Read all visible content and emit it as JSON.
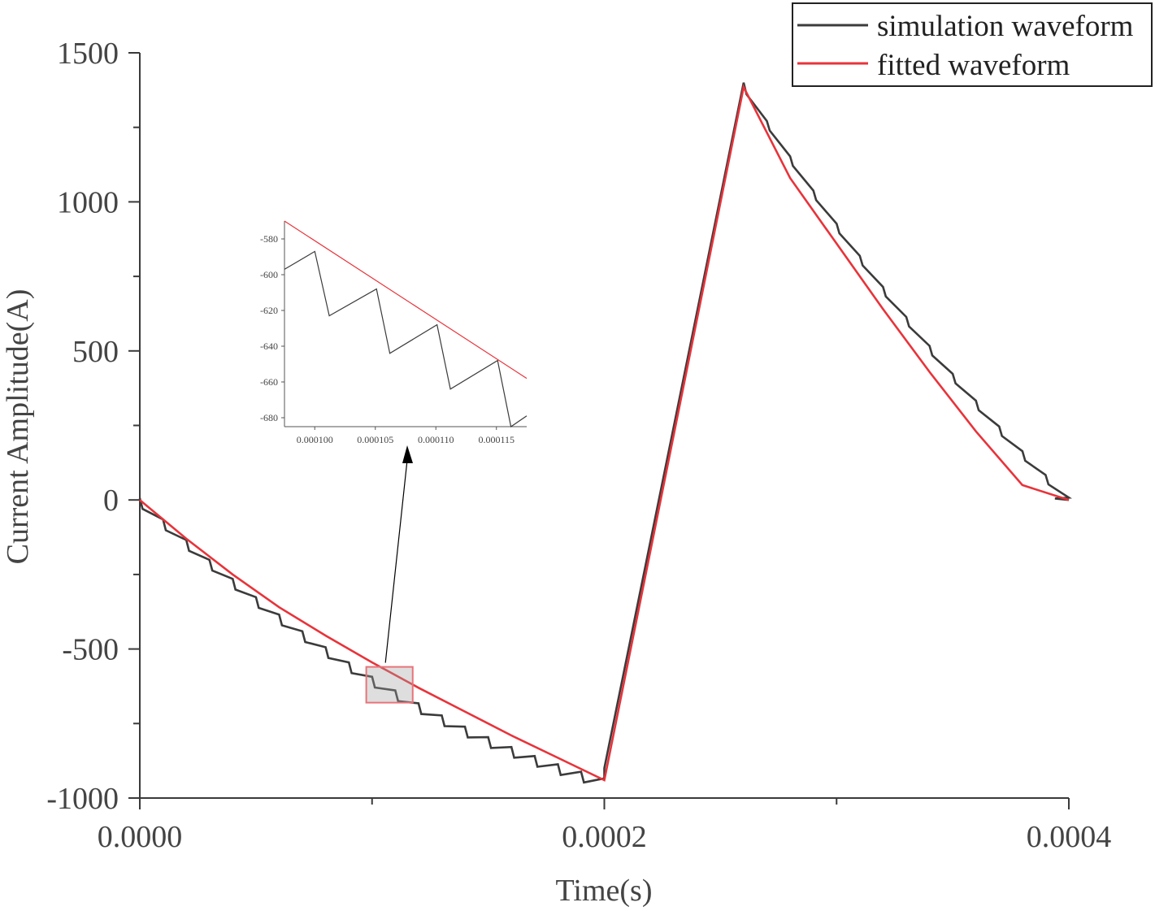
{
  "chart_data": {
    "type": "line",
    "xlabel": "Time(s)",
    "ylabel": "Current Amplitude(A)",
    "xlim": [
      0,
      0.0004
    ],
    "ylim": [
      -1000,
      1500
    ],
    "x_ticks": [
      0,
      0.0002,
      0.0004
    ],
    "x_tick_labels": [
      "0.0000",
      "0.0002",
      "0.0004"
    ],
    "y_ticks": [
      -1000,
      -500,
      0,
      500,
      1000,
      1500
    ],
    "y_tick_labels": [
      "-1000",
      "-500",
      "0",
      "500",
      "1000",
      "1500"
    ],
    "legend_position": "top-right",
    "grid": false,
    "series": [
      {
        "name": "simulation waveform",
        "color": "#3b3b3b",
        "x": [
          0,
          1e-05,
          0.0002,
          0.00026,
          0.000394,
          0.0004
        ],
        "y": [
          0,
          -35,
          -900,
          1400,
          5,
          0
        ],
        "description_sawtooth_amplitude": 20
      },
      {
        "name": "fitted waveform",
        "color": "#e8333a",
        "x": [
          0,
          2e-05,
          4e-05,
          6e-05,
          8e-05,
          0.0001,
          0.00012,
          0.00014,
          0.00016,
          0.00018,
          0.0002,
          0.00026,
          0.00028,
          0.0003,
          0.00032,
          0.00034,
          0.00036,
          0.00038,
          0.0004
        ],
        "y": [
          0,
          -130,
          -250,
          -360,
          -455,
          -545,
          -630,
          -710,
          -790,
          -865,
          -940,
          1385,
          1080,
          860,
          640,
          430,
          230,
          50,
          0
        ]
      }
    ],
    "zoom_box": {
      "x": [
        9.75e-05,
        0.0001175
      ],
      "y": [
        -680,
        -560
      ],
      "color": "#e8737a"
    },
    "inset": {
      "xlim": [
        9.75e-05,
        0.0001175
      ],
      "ylim": [
        -685,
        -570
      ],
      "x_ticks": [
        0.0001,
        0.000105,
        0.00011,
        0.000115
      ],
      "x_tick_labels": [
        "0.000100",
        "0.000105",
        "0.000110",
        "0.000115"
      ],
      "y_ticks": [
        -580,
        -600,
        -620,
        -640,
        -660,
        -680
      ],
      "y_tick_labels": [
        "-580",
        "-600",
        "-620",
        "-640",
        "-660",
        "-680"
      ],
      "simulation": {
        "x": [
          9.75e-05,
          0.0001,
          0.0001012,
          0.0001051,
          0.0001062,
          0.0001101,
          0.0001112,
          0.0001151,
          0.0001162,
          0.0001175
        ],
        "y": [
          -597,
          -587,
          -623,
          -608,
          -644,
          -628,
          -664,
          -648,
          -685,
          -679
        ]
      },
      "fitted": {
        "x": [
          9.75e-05,
          0.0001175
        ],
        "y": [
          -570,
          -658
        ]
      }
    }
  }
}
